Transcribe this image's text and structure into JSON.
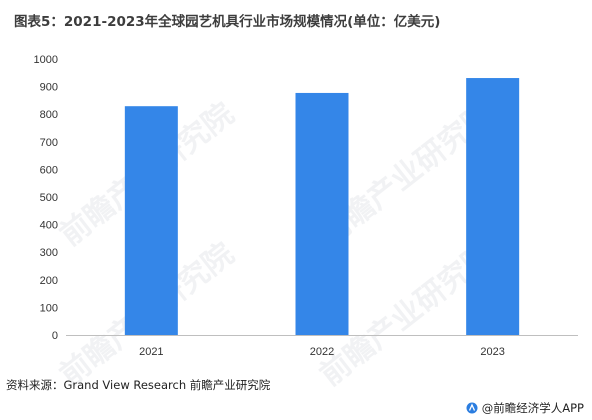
{
  "title": "图表5：2021-2023年全球园艺机具行业市场规模情况(单位：亿美元)",
  "source": "资料来源：Grand View Research 前瞻产业研究院",
  "brand": "@前瞻经济学人APP",
  "watermark": "前瞻产业研究院",
  "colors": {
    "bar": "#3486e8",
    "axis": "#bfbfbf"
  },
  "chart_data": {
    "type": "bar",
    "categories": [
      "2021",
      "2022",
      "2023"
    ],
    "values": [
      829,
      877,
      931
    ],
    "ylim": [
      0,
      1000
    ],
    "yticks": [
      0,
      100,
      200,
      300,
      400,
      500,
      600,
      700,
      800,
      900,
      1000
    ],
    "grid": false,
    "legend": "none"
  }
}
